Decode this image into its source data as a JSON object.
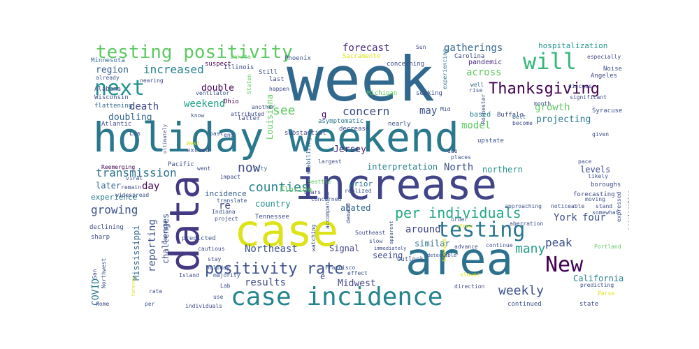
{
  "words": [
    {
      "text": "week",
      "size": 88,
      "color": "#31688e"
    },
    {
      "text": "holiday weekend",
      "size": 58,
      "color": "#2a788e"
    },
    {
      "text": "increase",
      "size": 60,
      "color": "#414487"
    },
    {
      "text": "case",
      "size": 62,
      "color": "#dde318"
    },
    {
      "text": "data",
      "size": 58,
      "color": "#443983",
      "rot": true
    },
    {
      "text": "area",
      "size": 64,
      "color": "#2c728e"
    },
    {
      "text": "case incidence",
      "size": 36,
      "color": "#25858e"
    },
    {
      "text": "testing positivity",
      "size": 26,
      "color": "#5ec962"
    },
    {
      "text": "will",
      "size": 32,
      "color": "#35b779"
    },
    {
      "text": "next",
      "size": 30,
      "color": "#20928c"
    },
    {
      "text": "Thanksgiving",
      "size": 22,
      "color": "#440154"
    },
    {
      "text": "testing",
      "size": 30,
      "color": "#2a788e"
    },
    {
      "text": "New",
      "size": 30,
      "color": "#440154"
    },
    {
      "text": "positivity rate",
      "size": 22,
      "color": "#3b528b"
    },
    {
      "text": "per individuals",
      "size": 20,
      "color": "#22a884"
    },
    {
      "text": "now",
      "size": 18,
      "color": "#3e4a89"
    },
    {
      "text": "counties",
      "size": 18,
      "color": "#26828e"
    },
    {
      "text": "see",
      "size": 18,
      "color": "#5ec962"
    },
    {
      "text": "concern",
      "size": 16,
      "color": "#3e4a89"
    },
    {
      "text": "weekly",
      "size": 18,
      "color": "#3b528b"
    },
    {
      "text": "many",
      "size": 18,
      "color": "#1f9e89"
    },
    {
      "text": "peak",
      "size": 16,
      "color": "#3b528b"
    },
    {
      "text": "forecast",
      "size": 14,
      "color": "#482878"
    },
    {
      "text": "gatherings",
      "size": 14,
      "color": "#31688e"
    },
    {
      "text": "increased",
      "size": 16,
      "color": "#26828e"
    },
    {
      "text": "region",
      "size": 13,
      "color": "#355f8d"
    },
    {
      "text": "across",
      "size": 14,
      "color": "#5ec962"
    },
    {
      "text": "growth",
      "size": 14,
      "color": "#5ec962"
    },
    {
      "text": "weekend",
      "size": 14,
      "color": "#1fa088"
    },
    {
      "text": "double",
      "size": 13,
      "color": "#440154"
    },
    {
      "text": "death",
      "size": 14,
      "color": "#3e4a89"
    },
    {
      "text": "model",
      "size": 14,
      "color": "#5ec962"
    },
    {
      "text": "may",
      "size": 14,
      "color": "#3b528b"
    },
    {
      "text": "projecting",
      "size": 13,
      "color": "#2a788e"
    },
    {
      "text": "doubling",
      "size": 13,
      "color": "#31688e"
    },
    {
      "text": "transmission",
      "size": 16,
      "color": "#2d708e"
    },
    {
      "text": "Jersey",
      "size": 13,
      "color": "#482878"
    },
    {
      "text": "North",
      "size": 14,
      "color": "#3b528b"
    },
    {
      "text": "interpretation",
      "size": 12,
      "color": "#26828e"
    },
    {
      "text": "northern",
      "size": 12,
      "color": "#21918c"
    },
    {
      "text": "levels",
      "size": 12,
      "color": "#3e4a89"
    },
    {
      "text": "day",
      "size": 14,
      "color": "#440154"
    },
    {
      "text": "later",
      "size": 12,
      "color": "#31688e"
    },
    {
      "text": "experience",
      "size": 11,
      "color": "#2a788e"
    },
    {
      "text": "growing",
      "size": 16,
      "color": "#3b528b"
    },
    {
      "text": "country",
      "size": 12,
      "color": "#21918c"
    },
    {
      "text": "re",
      "size": 14,
      "color": "#414487"
    },
    {
      "text": "incidence",
      "size": 11,
      "color": "#355f8d"
    },
    {
      "text": "York",
      "size": 14,
      "color": "#3e4a89"
    },
    {
      "text": "four",
      "size": 14,
      "color": "#3b528b"
    },
    {
      "text": "around",
      "size": 14,
      "color": "#414487"
    },
    {
      "text": "abated",
      "size": 12,
      "color": "#31688e"
    },
    {
      "text": "Northeast",
      "size": 14,
      "color": "#3b528b"
    },
    {
      "text": "Signal",
      "size": 12,
      "color": "#414487"
    },
    {
      "text": "seeing",
      "size": 12,
      "color": "#3e4a89"
    },
    {
      "text": "similar",
      "size": 12,
      "color": "#2c728e"
    },
    {
      "text": "results",
      "size": 14,
      "color": "#3e4a89"
    },
    {
      "text": "Midwest",
      "size": 13,
      "color": "#414487"
    },
    {
      "text": "California",
      "size": 12,
      "color": "#26828e"
    },
    {
      "text": "reporting",
      "size": 14,
      "color": "#3b528b",
      "rot": true
    },
    {
      "text": "challenges",
      "size": 12,
      "color": "#3e4a89",
      "rot": true
    },
    {
      "text": "Mississippi",
      "size": 12,
      "color": "#31688e",
      "rot": true
    },
    {
      "text": "COVID",
      "size": 13,
      "color": "#2a788e",
      "rot": true
    },
    {
      "text": "Louisiana",
      "size": 12,
      "color": "#5ec962",
      "rot": true
    },
    {
      "text": "hospitalization",
      "size": 11,
      "color": "#21918c"
    },
    {
      "text": "pandemic",
      "size": 10,
      "color": "#482878"
    },
    {
      "text": "Carolina",
      "size": 9,
      "color": "#3e4a89"
    },
    {
      "text": "based",
      "size": 10,
      "color": "#26828e"
    },
    {
      "text": "upstate",
      "size": 9,
      "color": "#3b528b"
    },
    {
      "text": "prior",
      "size": 11,
      "color": "#2c728e"
    },
    {
      "text": "g",
      "size": 12,
      "color": "#440154"
    },
    {
      "text": "Florida",
      "size": 11,
      "color": "#5ec962"
    },
    {
      "text": "Illinois",
      "size": 9,
      "color": "#3e4a89"
    },
    {
      "text": "Phoenix",
      "size": 9,
      "color": "#3b528b"
    },
    {
      "text": "Sacramento",
      "size": 9,
      "color": "#dde318"
    },
    {
      "text": "concerning",
      "size": 9,
      "color": "#3e4a89"
    },
    {
      "text": "Michigan",
      "size": 9,
      "color": "#5ec962"
    },
    {
      "text": "seeking",
      "size": 9,
      "color": "#3e4a89"
    },
    {
      "text": "experiencing",
      "size": 8,
      "color": "#2a788e",
      "rot": true
    },
    {
      "text": "Minnesota",
      "size": 9,
      "color": "#31688e"
    },
    {
      "text": "Alabama",
      "size": 9,
      "color": "#3e4a89"
    },
    {
      "text": "Wisconsin",
      "size": 9,
      "color": "#3b528b"
    },
    {
      "text": "flattening",
      "size": 9,
      "color": "#31688e"
    },
    {
      "text": "Atlantic",
      "size": 9,
      "color": "#3e4a89"
    },
    {
      "text": "suspect",
      "size": 9,
      "color": "#440154"
    },
    {
      "text": "ventilator",
      "size": 8,
      "color": "#3b528b"
    },
    {
      "text": "nearing",
      "size": 8,
      "color": "#3e4a89"
    },
    {
      "text": "Dakota",
      "size": 8,
      "color": "#5ec962"
    },
    {
      "text": "Still",
      "size": 9,
      "color": "#3b528b"
    },
    {
      "text": "last",
      "size": 9,
      "color": "#3e4a89"
    },
    {
      "text": "Ohio",
      "size": 9,
      "color": "#440154"
    },
    {
      "text": "know",
      "size": 8,
      "color": "#3b528b"
    },
    {
      "text": "latter",
      "size": 9,
      "color": "#3e4a89"
    },
    {
      "text": "substantial",
      "size": 9,
      "color": "#414487"
    },
    {
      "text": "asymptomatic",
      "size": 9,
      "color": "#2a788e"
    },
    {
      "text": "decrease",
      "size": 9,
      "color": "#3e4a89"
    },
    {
      "text": "nearly",
      "size": 9,
      "color": "#3b528b"
    },
    {
      "text": "Rochester",
      "size": 8,
      "color": "#3e4a89",
      "rot": true
    },
    {
      "text": "Buffalo",
      "size": 9,
      "color": "#3e4a89"
    },
    {
      "text": "Mid",
      "size": 8,
      "color": "#3b528b"
    },
    {
      "text": "Belt",
      "size": 8,
      "color": "#31688e"
    },
    {
      "text": "become",
      "size": 8,
      "color": "#3e4a89"
    },
    {
      "text": "month",
      "size": 8,
      "color": "#3b528b"
    },
    {
      "text": "significant",
      "size": 8,
      "color": "#3e4a89"
    },
    {
      "text": "Syracuse",
      "size": 9,
      "color": "#3b528b"
    },
    {
      "text": "Angeles",
      "size": 9,
      "color": "#3e4a89"
    },
    {
      "text": "Noise",
      "size": 9,
      "color": "#3b528b"
    },
    {
      "text": "especially",
      "size": 8,
      "color": "#3e4a89"
    },
    {
      "text": "Outlook",
      "size": 9,
      "color": "#3b528b"
    },
    {
      "text": "Sun",
      "size": 8,
      "color": "#3e4a89"
    },
    {
      "text": "well",
      "size": 8,
      "color": "#31688e"
    },
    {
      "text": "rise",
      "size": 8,
      "color": "#3b528b"
    },
    {
      "text": "happen",
      "size": 8,
      "color": "#3e4a89"
    },
    {
      "text": "Staten",
      "size": 8,
      "color": "#5ec962",
      "rot": true
    },
    {
      "text": "Los",
      "size": 9,
      "color": "#3e4a89"
    },
    {
      "text": "West",
      "size": 8,
      "color": "#dde318"
    },
    {
      "text": "exceed",
      "size": 9,
      "color": "#3e4a89"
    },
    {
      "text": "past",
      "size": 8,
      "color": "#3b528b"
    },
    {
      "text": "end",
      "size": 8,
      "color": "#3e4a89"
    },
    {
      "text": "Pacific",
      "size": 9,
      "color": "#3e4a89"
    },
    {
      "text": "went",
      "size": 8,
      "color": "#3b528b"
    },
    {
      "text": "City",
      "size": 8,
      "color": "#31688e"
    },
    {
      "text": "impact",
      "size": 8,
      "color": "#3e4a89"
    },
    {
      "text": "realized",
      "size": 8,
      "color": "#3b528b"
    },
    {
      "text": "largest",
      "size": 8,
      "color": "#3e4a89"
    },
    {
      "text": "stabilizing",
      "size": 8,
      "color": "#31688e",
      "rot": true
    },
    {
      "text": "due",
      "size": 8,
      "color": "#3e4a89"
    },
    {
      "text": "places",
      "size": 8,
      "color": "#3b528b"
    },
    {
      "text": "given",
      "size": 8,
      "color": "#3e4a89"
    },
    {
      "text": "pace",
      "size": 8,
      "color": "#3b528b"
    },
    {
      "text": "boroughs",
      "size": 9,
      "color": "#3e4a89"
    },
    {
      "text": "likely",
      "size": 8,
      "color": "#3b528b"
    },
    {
      "text": "forecasting",
      "size": 9,
      "color": "#3e4a89"
    },
    {
      "text": "Reemerging",
      "size": 8,
      "color": "#440154"
    },
    {
      "text": "viral",
      "size": 8,
      "color": "#3b528b"
    },
    {
      "text": "remain",
      "size": 8,
      "color": "#3e4a89"
    },
    {
      "text": "widespread",
      "size": 8,
      "color": "#3b528b"
    },
    {
      "text": "declining",
      "size": 9,
      "color": "#3e4a89"
    },
    {
      "text": "Indiana",
      "size": 8,
      "color": "#3b528b"
    },
    {
      "text": "project",
      "size": 8,
      "color": "#3e4a89"
    },
    {
      "text": "translate",
      "size": 8,
      "color": "#3b528b"
    },
    {
      "text": "Tennessee",
      "size": 9,
      "color": "#3e4a89"
    },
    {
      "text": "Seattle",
      "size": 8,
      "color": "#5ec962"
    },
    {
      "text": "bears",
      "size": 8,
      "color": "#3e4a89"
    },
    {
      "text": "concerned",
      "size": 8,
      "color": "#3b528b"
    },
    {
      "text": "demand",
      "size": 8,
      "color": "#3e4a89",
      "rot": true
    },
    {
      "text": "accompanied",
      "size": 8,
      "color": "#3b528b",
      "rot": true
    },
    {
      "text": "Southeast",
      "size": 8,
      "color": "#3e4a89"
    },
    {
      "text": "slow",
      "size": 8,
      "color": "#3b528b"
    },
    {
      "text": "immediately",
      "size": 7,
      "color": "#3e4a89"
    },
    {
      "text": "approaching",
      "size": 8,
      "color": "#3b528b"
    },
    {
      "text": "noticeable",
      "size": 8,
      "color": "#3e4a89"
    },
    {
      "text": "moving",
      "size": 8,
      "color": "#3b528b"
    },
    {
      "text": "stand",
      "size": 8,
      "color": "#3e4a89"
    },
    {
      "text": "somewhat",
      "size": 8,
      "color": "#3b528b"
    },
    {
      "text": "aberration",
      "size": 8,
      "color": "#3e4a89"
    },
    {
      "text": "expressed",
      "size": 8,
      "color": "#3b528b",
      "rot": true
    },
    {
      "text": "acceleration",
      "size": 8,
      "color": "#3e4a89",
      "rot": true
    },
    {
      "text": "order",
      "size": 8,
      "color": "#3b528b"
    },
    {
      "text": "often",
      "size": 8,
      "color": "#dde318"
    },
    {
      "text": "apparent",
      "size": 7,
      "color": "#3e4a89",
      "rot": true
    },
    {
      "text": "detectable",
      "size": 7,
      "color": "#3b528b"
    },
    {
      "text": "advance",
      "size": 8,
      "color": "#3e4a89"
    },
    {
      "text": "continue",
      "size": 8,
      "color": "#3b528b"
    },
    {
      "text": "Portland",
      "size": 8,
      "color": "#5ec962"
    },
    {
      "text": "sharp",
      "size": 9,
      "color": "#3e4a89"
    },
    {
      "text": "predicted",
      "size": 9,
      "color": "#3b528b"
    },
    {
      "text": "cautious",
      "size": 8,
      "color": "#3e4a89"
    },
    {
      "text": "Georgia",
      "size": 8,
      "color": "#3b528b",
      "rot": true
    },
    {
      "text": "watching",
      "size": 8,
      "color": "#3e4a89",
      "rot": true
    },
    {
      "text": "Spokane",
      "size": 8,
      "color": "#dde318",
      "rot": true
    },
    {
      "text": "stay",
      "size": 8,
      "color": "#3e4a89"
    },
    {
      "text": "holiday",
      "size": 8,
      "color": "#3b528b"
    },
    {
      "text": "Island",
      "size": 8,
      "color": "#3e4a89"
    },
    {
      "text": "majority",
      "size": 8,
      "color": "#3b528b"
    },
    {
      "text": "Lab",
      "size": 8,
      "color": "#3e4a89"
    },
    {
      "text": "Francisco",
      "size": 8,
      "color": "#3b528b"
    },
    {
      "text": "e",
      "size": 12,
      "color": "#3e4a89"
    },
    {
      "text": "effect",
      "size": 8,
      "color": "#3b528b"
    },
    {
      "text": "slower",
      "size": 8,
      "color": "#dde318"
    },
    {
      "text": "direction",
      "size": 8,
      "color": "#3e4a89"
    },
    {
      "text": "predicting",
      "size": 8,
      "color": "#3b528b"
    },
    {
      "text": "Parse",
      "size": 8,
      "color": "#dde318"
    },
    {
      "text": "San",
      "size": 8,
      "color": "#3e4a89",
      "rot": true
    },
    {
      "text": "Northwest",
      "size": 8,
      "color": "#3b528b",
      "rot": true
    },
    {
      "text": "rate",
      "size": 8,
      "color": "#3e4a89"
    },
    {
      "text": "use",
      "size": 8,
      "color": "#3b528b"
    },
    {
      "text": "home",
      "size": 8,
      "color": "#3e4a89"
    },
    {
      "text": "per",
      "size": 8,
      "color": "#3b528b"
    },
    {
      "text": "individuals",
      "size": 8,
      "color": "#3e4a89"
    },
    {
      "text": "continued",
      "size": 9,
      "color": "#3b528b"
    },
    {
      "text": "state",
      "size": 9,
      "color": "#3e4a89"
    },
    {
      "text": "forever",
      "size": 7,
      "color": "#dde318",
      "rot": true
    },
    {
      "text": "ultimately",
      "size": 7,
      "color": "#3e4a89",
      "rot": true
    },
    {
      "text": "another",
      "size": 8,
      "color": "#3b528b"
    },
    {
      "text": "attributed",
      "size": 8,
      "color": "#3e4a89"
    },
    {
      "text": "already",
      "size": 8,
      "color": "#3b528b"
    },
    {
      "text": "discuss",
      "size": 8,
      "color": "#3e4a89"
    }
  ]
}
